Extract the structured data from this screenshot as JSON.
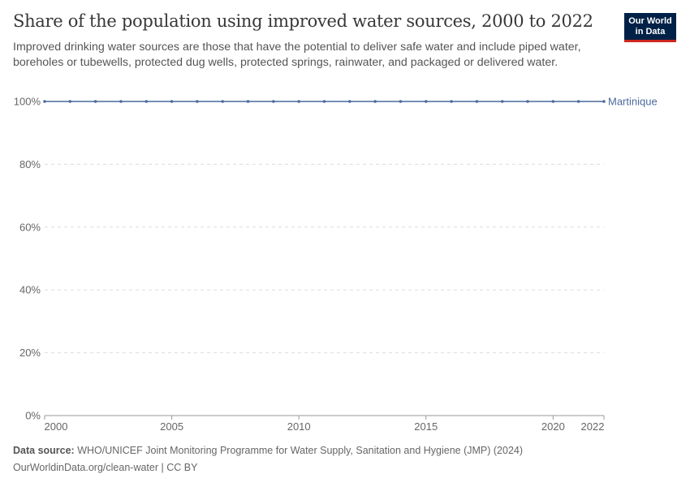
{
  "title": "Share of the population using improved water sources, 2000 to 2022",
  "subtitle": "Improved drinking water sources are those that have the potential to deliver safe water and include piped water, boreholes or tubewells, protected dug wells, protected springs, rainwater, and packaged or delivered water.",
  "logo": {
    "line1": "Our World",
    "line2": "in Data"
  },
  "footer": {
    "source_label": "Data source:",
    "source_text": "WHO/UNICEF Joint Monitoring Programme for Water Supply, Sanitation and Hygiene (JMP) (2024)",
    "url_license": "OurWorldinData.org/clean-water | CC BY"
  },
  "chart_data": {
    "type": "line",
    "title": "Share of the population using improved water sources, 2000 to 2022",
    "xlim": [
      2000,
      2022
    ],
    "ylim": [
      0,
      100
    ],
    "x_ticks": [
      "2000",
      "2005",
      "2010",
      "2015",
      "2020",
      "2022"
    ],
    "y_ticks": [
      "0%",
      "20%",
      "40%",
      "60%",
      "80%",
      "100%"
    ],
    "grid": "horizontal dashed",
    "legend": "right, end-of-line label",
    "series": [
      {
        "name": "Martinique",
        "color": "#4c6a9c",
        "x": [
          2000,
          2001,
          2002,
          2003,
          2004,
          2005,
          2006,
          2007,
          2008,
          2009,
          2010,
          2011,
          2012,
          2013,
          2014,
          2015,
          2016,
          2017,
          2018,
          2019,
          2020,
          2021,
          2022
        ],
        "values": [
          100,
          100,
          100,
          100,
          100,
          100,
          100,
          100,
          100,
          100,
          100,
          100,
          100,
          100,
          100,
          100,
          100,
          100,
          100,
          100,
          100,
          100,
          100
        ]
      }
    ]
  }
}
